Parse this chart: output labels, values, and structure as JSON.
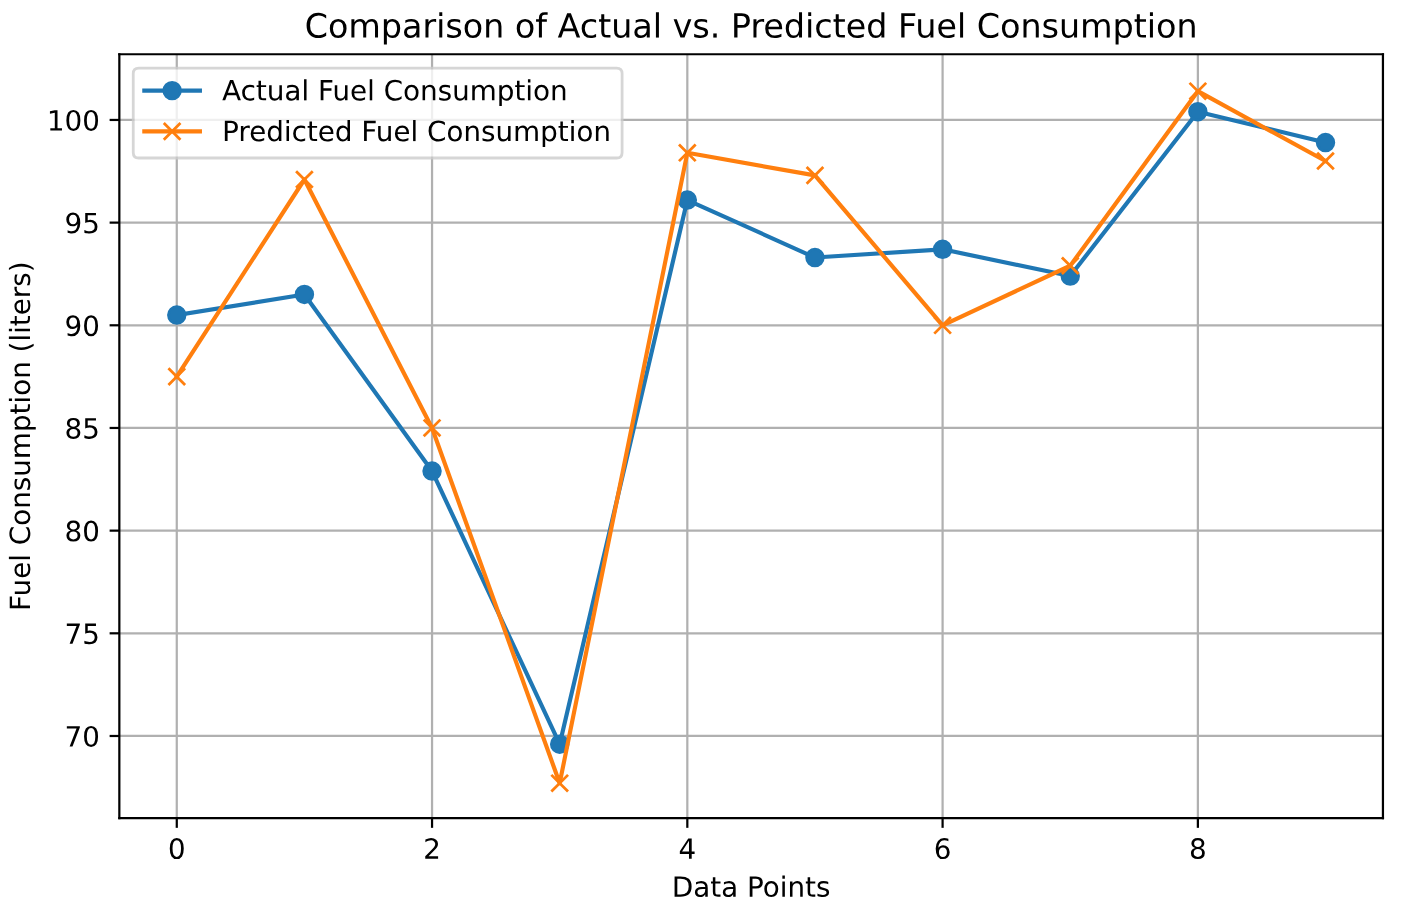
{
  "chart_data": {
    "type": "line",
    "title": "Comparison of Actual vs. Predicted Fuel Consumption",
    "xlabel": "Data Points",
    "ylabel": "Fuel Consumption (liters)",
    "x": [
      0,
      1,
      2,
      3,
      4,
      5,
      6,
      7,
      8,
      9
    ],
    "series": [
      {
        "name": "Actual Fuel Consumption",
        "color": "#1f77b4",
        "marker": "circle",
        "values": [
          90.5,
          91.5,
          82.9,
          69.6,
          96.1,
          93.3,
          93.7,
          92.4,
          100.4,
          98.9
        ]
      },
      {
        "name": "Predicted Fuel Consumption",
        "color": "#ff7f0e",
        "marker": "cross",
        "values": [
          87.5,
          97.1,
          85.0,
          67.7,
          98.4,
          97.3,
          90.0,
          92.9,
          101.4,
          98.0
        ]
      }
    ],
    "xlim": [
      -0.45,
      9.45
    ],
    "xticks": [
      0,
      2,
      4,
      6,
      8
    ],
    "ylim": [
      66.0,
      103.2
    ],
    "yticks": [
      70,
      75,
      80,
      85,
      90,
      95,
      100
    ],
    "grid": true,
    "legend": "top left",
    "line_style": "solid"
  }
}
